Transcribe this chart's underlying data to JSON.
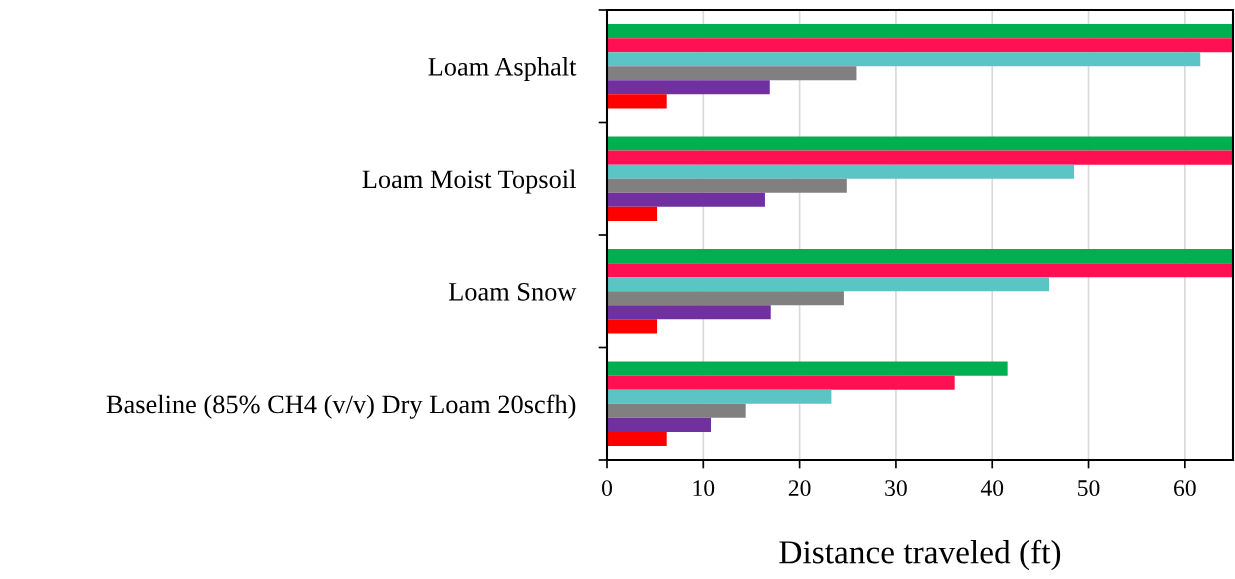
{
  "chart_data": {
    "type": "bar",
    "orientation": "horizontal",
    "xlabel": "Distance traveled (ft)",
    "categories": [
      "Loam Asphalt",
      "Loam Moist Topsoil",
      "Loam Snow",
      "Baseline (85% CH4 (v/v) Dry Loam 20scfh)"
    ],
    "series": [
      {
        "color": "#00b050",
        "values": [
          65,
          65,
          65,
          41.6
        ]
      },
      {
        "color": "#ff1053",
        "values": [
          65,
          65,
          65,
          36.1
        ]
      },
      {
        "color": "#5bc4c4",
        "values": [
          61.6,
          48.5,
          45.9,
          23.3
        ]
      },
      {
        "color": "#808080",
        "values": [
          25.9,
          24.9,
          24.6,
          14.4
        ]
      },
      {
        "color": "#7030a0",
        "values": [
          16.9,
          16.4,
          17.0,
          10.8
        ]
      },
      {
        "color": "#ff0000",
        "values": [
          6.2,
          5.2,
          5.2,
          6.2
        ]
      }
    ],
    "xlim": [
      0,
      65
    ],
    "xticks": [
      0,
      10,
      20,
      30,
      40,
      50,
      60
    ],
    "grid": "x"
  }
}
